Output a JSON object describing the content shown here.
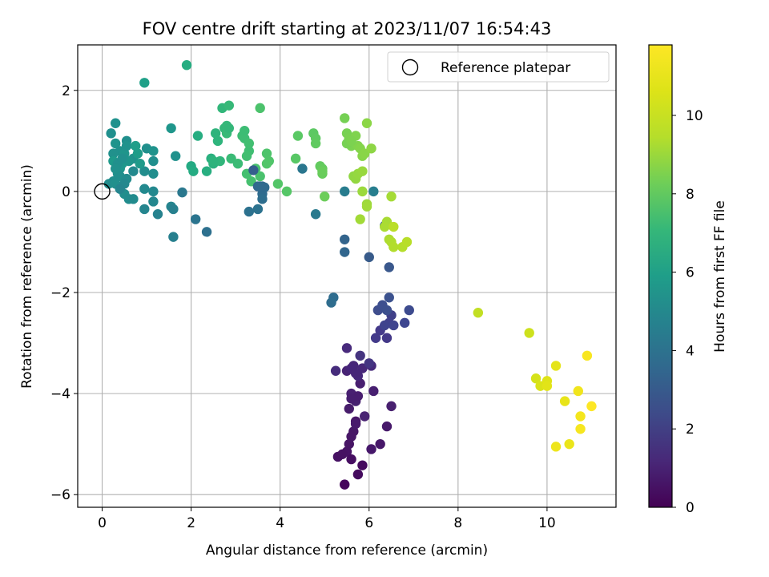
{
  "chart_data": {
    "type": "scatter",
    "title": "FOV centre drift starting at 2023/11/07 16:54:43",
    "xlabel": "Angular distance from reference (arcmin)",
    "ylabel": "Rotation from reference (arcmin)",
    "xlim": [
      -0.55,
      11.55
    ],
    "ylim": [
      -6.25,
      2.9
    ],
    "xticks": [
      0,
      2,
      4,
      6,
      8,
      10
    ],
    "yticks": [
      -6,
      -4,
      -2,
      0,
      2
    ],
    "x_tick_labels": [
      "0",
      "2",
      "4",
      "6",
      "8",
      "10"
    ],
    "y_tick_labels": [
      "−6",
      "−4",
      "−2",
      "0",
      "2"
    ],
    "grid": true,
    "legend": {
      "placement": "top-right",
      "entries": [
        "Reference platepar"
      ]
    },
    "reference_point": {
      "x": 0,
      "y": 0,
      "label": "Reference platepar"
    },
    "colorbar": {
      "label": "Hours from first FF file",
      "colormap": "viridis",
      "range": [
        0,
        11.8
      ],
      "ticks": [
        0,
        2,
        4,
        6,
        8,
        10
      ],
      "tick_labels": [
        "0",
        "2",
        "4",
        "6",
        "8",
        "10"
      ]
    },
    "series": [
      {
        "values": [
          [
            5.45,
            -5.8
          ],
          [
            5.75,
            -5.6
          ],
          [
            5.85,
            -5.42
          ],
          [
            5.3,
            -5.25
          ],
          [
            5.5,
            -5.15
          ],
          [
            5.65,
            -4.75
          ],
          [
            5.7,
            -4.55
          ],
          [
            5.55,
            -4.3
          ],
          [
            5.6,
            -4.0
          ],
          [
            5.8,
            -3.8
          ],
          [
            5.5,
            -3.55
          ],
          [
            5.65,
            -3.45
          ],
          [
            5.85,
            -3.5
          ],
          [
            6.05,
            -3.45
          ],
          [
            5.5,
            -3.1
          ],
          [
            5.25,
            -3.55
          ],
          [
            5.9,
            -4.45
          ],
          [
            6.25,
            -5.0
          ],
          [
            6.05,
            -5.1
          ],
          [
            5.7,
            -4.15
          ],
          [
            6.1,
            -3.95
          ],
          [
            6.5,
            -4.25
          ],
          [
            6.4,
            -4.65
          ],
          [
            5.6,
            -5.3
          ],
          [
            5.4,
            -5.2
          ],
          [
            5.55,
            -5.0
          ],
          [
            5.6,
            -4.85
          ],
          [
            5.8,
            -3.25
          ],
          [
            6.0,
            -3.4
          ],
          [
            5.75,
            -3.65
          ],
          [
            6.4,
            -2.9
          ],
          [
            6.25,
            -2.75
          ],
          [
            6.15,
            -2.9
          ],
          [
            6.5,
            -2.45
          ],
          [
            6.45,
            -2.6
          ],
          [
            6.35,
            -2.65
          ],
          [
            6.55,
            -2.65
          ],
          [
            6.8,
            -2.6
          ],
          [
            6.9,
            -2.35
          ],
          [
            6.2,
            -2.35
          ],
          [
            6.3,
            -2.25
          ],
          [
            6.4,
            -2.35
          ],
          [
            6.45,
            -2.1
          ],
          [
            6.45,
            -1.5
          ],
          [
            6.0,
            -1.3
          ],
          [
            6.35,
            -0.68
          ],
          [
            5.45,
            -0.95
          ],
          [
            5.45,
            -1.2
          ],
          [
            5.2,
            -2.1
          ],
          [
            5.15,
            -2.2
          ],
          [
            5.6,
            -3.5
          ],
          [
            5.7,
            -4.6
          ],
          [
            5.75,
            -4.05
          ],
          [
            5.7,
            -3.6
          ],
          [
            5.6,
            -4.1
          ]
        ],
        "colors": [
          "#45055c",
          "#450b5e",
          "#450a5e",
          "#461163",
          "#471365",
          "#471866",
          "#481668",
          "#471d6b",
          "#482071",
          "#481f70",
          "#482475",
          "#472677",
          "#482879",
          "#46297b",
          "#482a7c",
          "#462c7c",
          "#482371",
          "#471769",
          "#46176a",
          "#472170",
          "#471f70",
          "#48206f",
          "#47196a",
          "#460e61",
          "#461262",
          "#471565",
          "#481767",
          "#45347f",
          "#443582",
          "#46287a",
          "#433888",
          "#443a8a",
          "#433a8a",
          "#404088",
          "#41418c",
          "#3f438d",
          "#3f448e",
          "#3e4690",
          "#3d4b8e",
          "#3f4e8d",
          "#3e4f8f",
          "#3d508e",
          "#3c528e",
          "#3a588c",
          "#385b8a",
          "#365d8e",
          "#33648c",
          "#31668d",
          "#2f6c8e",
          "#2f6d8e",
          "#46257a",
          "#481a6c",
          "#481d6f",
          "#462678",
          "#471e6f"
        ]
      },
      {
        "values": [
          [
            0.3,
            1.35
          ],
          [
            0.2,
            1.15
          ],
          [
            0.55,
            1.0
          ],
          [
            0.3,
            0.95
          ],
          [
            0.4,
            0.8
          ],
          [
            0.5,
            0.75
          ],
          [
            0.25,
            0.75
          ],
          [
            0.25,
            0.6
          ],
          [
            0.45,
            0.55
          ],
          [
            0.7,
            0.65
          ],
          [
            0.4,
            0.45
          ],
          [
            0.35,
            0.35
          ],
          [
            0.25,
            0.2
          ],
          [
            0.15,
            0.15
          ],
          [
            0.3,
            0.15
          ],
          [
            0.5,
            -0.05
          ],
          [
            0.6,
            -0.15
          ],
          [
            0.7,
            -0.15
          ],
          [
            0.95,
            0.05
          ],
          [
            1.15,
            0.0
          ],
          [
            1.15,
            -0.2
          ],
          [
            0.95,
            -0.35
          ],
          [
            1.25,
            -0.45
          ],
          [
            1.55,
            -0.3
          ],
          [
            1.6,
            -0.35
          ],
          [
            1.8,
            -0.02
          ],
          [
            1.6,
            -0.9
          ],
          [
            2.1,
            -0.55
          ],
          [
            2.35,
            -0.8
          ],
          [
            1.65,
            0.7
          ],
          [
            1.15,
            0.6
          ],
          [
            1.15,
            0.35
          ],
          [
            0.95,
            0.4
          ],
          [
            0.7,
            0.4
          ],
          [
            1.0,
            0.85
          ],
          [
            1.15,
            0.8
          ],
          [
            1.55,
            1.25
          ],
          [
            0.95,
            2.15
          ],
          [
            0.55,
            0.9
          ],
          [
            0.6,
            0.6
          ],
          [
            0.35,
            0.55
          ],
          [
            0.4,
            0.3
          ],
          [
            0.55,
            0.25
          ],
          [
            0.5,
            0.15
          ],
          [
            0.4,
            0.05
          ],
          [
            0.8,
            0.75
          ],
          [
            0.85,
            0.55
          ],
          [
            0.75,
            0.9
          ],
          [
            0.3,
            0.45
          ],
          [
            0.45,
            0.65
          ]
        ],
        "colors": [
          "#1f928d",
          "#21908d",
          "#208f8c",
          "#1f948c",
          "#21918c",
          "#1f958b",
          "#21918c",
          "#1e9a8a",
          "#1f988b",
          "#21918c",
          "#1f968b",
          "#21918c",
          "#218f8d",
          "#228d8d",
          "#21908d",
          "#218e8d",
          "#228c8d",
          "#228b8d",
          "#23898e",
          "#23888e",
          "#24878e",
          "#25858e",
          "#26828e",
          "#25848e",
          "#27808e",
          "#2a788e",
          "#277f8e",
          "#2b748e",
          "#2d708e",
          "#21918c",
          "#218f8d",
          "#218e8d",
          "#228d8d",
          "#23898e",
          "#208f8c",
          "#1f938c",
          "#1f968b",
          "#1fa088",
          "#20928c",
          "#1f958b",
          "#21908d",
          "#218f8d",
          "#228c8d",
          "#23888e",
          "#25858e",
          "#1e9c89",
          "#1f9a8a",
          "#1f9e89",
          "#21918c",
          "#21908d"
        ]
      },
      {
        "values": [
          [
            1.9,
            2.5
          ],
          [
            2.0,
            0.5
          ],
          [
            2.05,
            0.4
          ],
          [
            2.15,
            1.1
          ],
          [
            2.35,
            0.4
          ],
          [
            2.45,
            0.65
          ],
          [
            2.5,
            0.55
          ],
          [
            2.55,
            1.15
          ],
          [
            2.6,
            1.0
          ],
          [
            2.65,
            0.6
          ],
          [
            2.7,
            1.65
          ],
          [
            2.75,
            1.25
          ],
          [
            2.8,
            1.3
          ],
          [
            2.85,
            1.7
          ],
          [
            2.8,
            1.15
          ],
          [
            2.9,
            0.65
          ],
          [
            3.05,
            0.55
          ],
          [
            3.15,
            1.1
          ],
          [
            3.2,
            1.05
          ],
          [
            3.3,
            0.8
          ],
          [
            3.25,
            0.7
          ],
          [
            3.25,
            0.35
          ],
          [
            3.35,
            0.2
          ],
          [
            3.45,
            0.45
          ],
          [
            3.55,
            0.3
          ],
          [
            3.55,
            1.65
          ],
          [
            3.7,
            0.75
          ],
          [
            3.75,
            0.6
          ],
          [
            3.7,
            0.55
          ],
          [
            3.95,
            0.15
          ],
          [
            4.15,
            0.0
          ],
          [
            4.35,
            0.65
          ],
          [
            4.4,
            1.1
          ],
          [
            4.75,
            1.15
          ],
          [
            4.8,
            1.05
          ],
          [
            4.8,
            0.95
          ],
          [
            4.9,
            0.5
          ],
          [
            4.95,
            0.45
          ],
          [
            4.95,
            0.35
          ],
          [
            4.95,
            0.4
          ],
          [
            5.0,
            -0.1
          ],
          [
            3.2,
            1.2
          ],
          [
            2.5,
            0.6
          ],
          [
            2.85,
            1.25
          ],
          [
            3.3,
            0.95
          ]
        ],
        "colors": [
          "#26ad81",
          "#24aa83",
          "#25ab82",
          "#27ad81",
          "#28ae80",
          "#2ab07f",
          "#2cb17e",
          "#2eb37c",
          "#2fb47c",
          "#31b57b",
          "#32b67a",
          "#34b679",
          "#35b779",
          "#37b878",
          "#38b977",
          "#3aba76",
          "#3bbb75",
          "#3dbc74",
          "#3fbc73",
          "#40bd72",
          "#42be71",
          "#44bf70",
          "#46c06f",
          "#48c16e",
          "#4ac16d",
          "#4cc26c",
          "#4ec36b",
          "#50c46a",
          "#52c569",
          "#54c568",
          "#56c667",
          "#58c765",
          "#5ac864",
          "#5cc863",
          "#5ec962",
          "#60ca60",
          "#63cb5f",
          "#65cb5e",
          "#67cc5c",
          "#69cd5b",
          "#6ccd5a",
          "#3dbc74",
          "#2eb37c",
          "#34b679",
          "#42be71"
        ]
      },
      {
        "values": [
          [
            3.4,
            0.42
          ],
          [
            3.5,
            0.1
          ],
          [
            3.55,
            0.1
          ],
          [
            3.6,
            -0.05
          ],
          [
            3.6,
            -0.15
          ],
          [
            3.3,
            -0.4
          ],
          [
            3.5,
            -0.35
          ],
          [
            4.5,
            0.45
          ],
          [
            4.8,
            -0.45
          ],
          [
            5.45,
            0.0
          ],
          [
            6.1,
            0.0
          ],
          [
            3.65,
            0.08
          ],
          [
            3.6,
            0.1
          ]
        ],
        "colors": [
          "#355f8d",
          "#31688e",
          "#306a8e",
          "#2f6b8e",
          "#2e6e8e",
          "#2c718e",
          "#2c728e",
          "#2a768e",
          "#297a8e",
          "#287c8e",
          "#277e8e",
          "#2f6b8e",
          "#306a8e"
        ]
      },
      {
        "values": [
          [
            5.45,
            1.45
          ],
          [
            5.5,
            1.15
          ],
          [
            5.55,
            1.05
          ],
          [
            5.6,
            0.9
          ],
          [
            5.7,
            1.1
          ],
          [
            5.75,
            0.9
          ],
          [
            5.8,
            0.85
          ],
          [
            5.85,
            0.7
          ],
          [
            5.9,
            0.75
          ],
          [
            5.95,
            1.35
          ],
          [
            6.05,
            0.85
          ],
          [
            5.65,
            0.3
          ],
          [
            5.7,
            0.25
          ],
          [
            5.75,
            0.35
          ],
          [
            5.85,
            0.4
          ],
          [
            5.85,
            0.0
          ],
          [
            5.95,
            -0.25
          ],
          [
            5.95,
            -0.3
          ],
          [
            5.8,
            -0.55
          ],
          [
            6.5,
            -0.1
          ],
          [
            6.4,
            -0.6
          ],
          [
            6.35,
            -0.7
          ],
          [
            6.45,
            -0.95
          ],
          [
            6.5,
            -1.0
          ],
          [
            6.55,
            -1.1
          ],
          [
            6.75,
            -1.1
          ],
          [
            6.85,
            -1.0
          ],
          [
            5.5,
            0.95
          ],
          [
            5.6,
            1.0
          ]
        ],
        "colors": [
          "#75d054",
          "#77d153",
          "#7ad151",
          "#7cd250",
          "#7fd34e",
          "#81d34d",
          "#84d44b",
          "#86d549",
          "#89d548",
          "#8bd646",
          "#8ed645",
          "#90d743",
          "#93d741",
          "#95d840",
          "#98d83e",
          "#9bd93c",
          "#9dd93b",
          "#a0da39",
          "#a2da37",
          "#a5db36",
          "#a8db34",
          "#aadc32",
          "#addc30",
          "#b0dd2f",
          "#b2dd2d",
          "#b5de2b",
          "#b8de29",
          "#77d153",
          "#7cd250"
        ]
      },
      {
        "values": [
          [
            6.55,
            -0.7
          ],
          [
            8.45,
            -2.4
          ],
          [
            9.6,
            -2.8
          ],
          [
            9.75,
            -3.7
          ],
          [
            9.85,
            -3.85
          ],
          [
            10.0,
            -3.75
          ],
          [
            10.0,
            -3.85
          ],
          [
            10.2,
            -3.45
          ],
          [
            10.4,
            -4.15
          ],
          [
            10.5,
            -5.0
          ],
          [
            10.2,
            -5.05
          ],
          [
            10.7,
            -3.95
          ],
          [
            10.75,
            -4.45
          ],
          [
            10.75,
            -4.7
          ],
          [
            10.9,
            -3.25
          ],
          [
            11.0,
            -4.25
          ]
        ],
        "colors": [
          "#bade28",
          "#c2df23",
          "#cde11d",
          "#d5e21a",
          "#dae319",
          "#dfe318",
          "#e2e418",
          "#e5e419",
          "#e8e419",
          "#ebe51a",
          "#eee51c",
          "#f1e51d",
          "#f4e61e",
          "#f6e620",
          "#f8e621",
          "#fde725"
        ]
      }
    ]
  }
}
